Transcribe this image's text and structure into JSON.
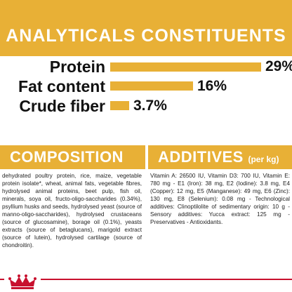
{
  "header": {
    "title": "ANALYTICALS CONSTITUENTS",
    "accent_color": "#e8b036"
  },
  "constituents": [
    {
      "label": "Protein",
      "value": "29%",
      "percent": 29
    },
    {
      "label": "Fat content",
      "value": "16%",
      "percent": 16
    },
    {
      "label": "Crude fiber",
      "value": "3.7%",
      "percent": 3.7
    }
  ],
  "composition": {
    "title": "COMPOSITION",
    "text": "dehydrated poultry protein, rice, maize, vegetable protein isolate*, wheat, animal fats, vegetable fibres, hydrolysed animal proteins, beet pulp, fish oil, minerals, soya oil, fructo-oligo-saccharides (0.34%), psyllium husks and seeds, hydrolysed yeast (source of manno-oligo-saccharides), hydrolysed crustaceans (source of glucosamine), borage oil (0.1%), yeasts extracts (source of betaglucans), marigold extract (source of lutein), hydrolysed cartilage (source of chondroitin)."
  },
  "additives": {
    "title": "ADDITIVES",
    "unit": "(per kg)",
    "text": "Vitamin A: 26500 IU, Vitamin D3: 700 IU, Vitamin E: 780 mg - E1 (Iron): 38 mg, E2 (Iodine): 3.8 mg, E4 (Copper): 12 mg, E5 (Manganese): 49 mg, E6 (Zinc): 130 mg, E8 (Selenium): 0.08 mg - Technological additives: Clinoptilolite of sedimentary origin: 10 g - Sensory additives: Yucca extract: 125 mg - Preservatives - Antioxidants."
  },
  "footer": {
    "logo_icon": "crown-logo-icon",
    "brand_color": "#c8102e"
  }
}
